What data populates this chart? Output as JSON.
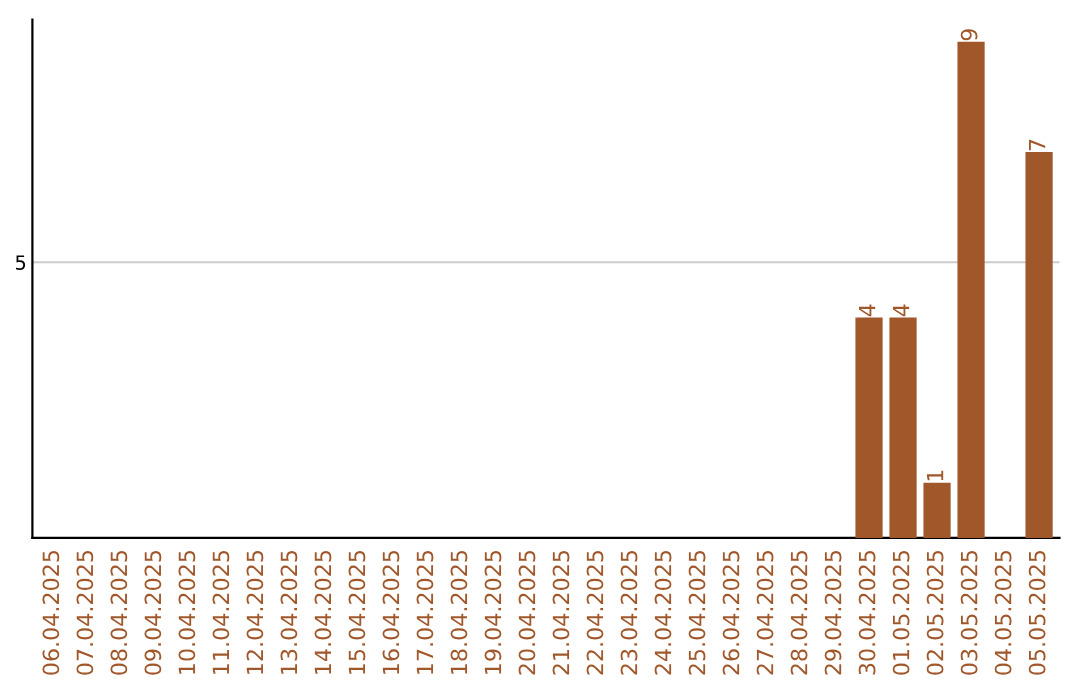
{
  "chart_data": {
    "type": "bar",
    "ylim": [
      0,
      9.4
    ],
    "categories": [
      "06.04.2025",
      "07.04.2025",
      "08.04.2025",
      "09.04.2025",
      "10.04.2025",
      "11.04.2025",
      "12.04.2025",
      "13.04.2025",
      "14.04.2025",
      "15.04.2025",
      "16.04.2025",
      "17.04.2025",
      "18.04.2025",
      "19.04.2025",
      "20.04.2025",
      "21.04.2025",
      "22.04.2025",
      "23.04.2025",
      "24.04.2025",
      "25.04.2025",
      "26.04.2025",
      "27.04.2025",
      "28.04.2025",
      "29.04.2025",
      "30.04.2025",
      "01.05.2025",
      "02.05.2025",
      "03.05.2025",
      "04.05.2025",
      "05.05.2025"
    ],
    "values": [
      null,
      null,
      null,
      null,
      null,
      null,
      null,
      null,
      null,
      null,
      null,
      null,
      null,
      null,
      null,
      null,
      null,
      null,
      null,
      null,
      null,
      null,
      null,
      null,
      4,
      4,
      1,
      9,
      null,
      7
    ],
    "value_labels": [
      null,
      null,
      null,
      null,
      null,
      null,
      null,
      null,
      null,
      null,
      null,
      null,
      null,
      null,
      null,
      null,
      null,
      null,
      null,
      null,
      null,
      null,
      null,
      null,
      "4",
      "4",
      "1",
      "9",
      null,
      "7"
    ],
    "color": "#a0572a",
    "yticks": [
      5
    ],
    "grid": "y"
  }
}
